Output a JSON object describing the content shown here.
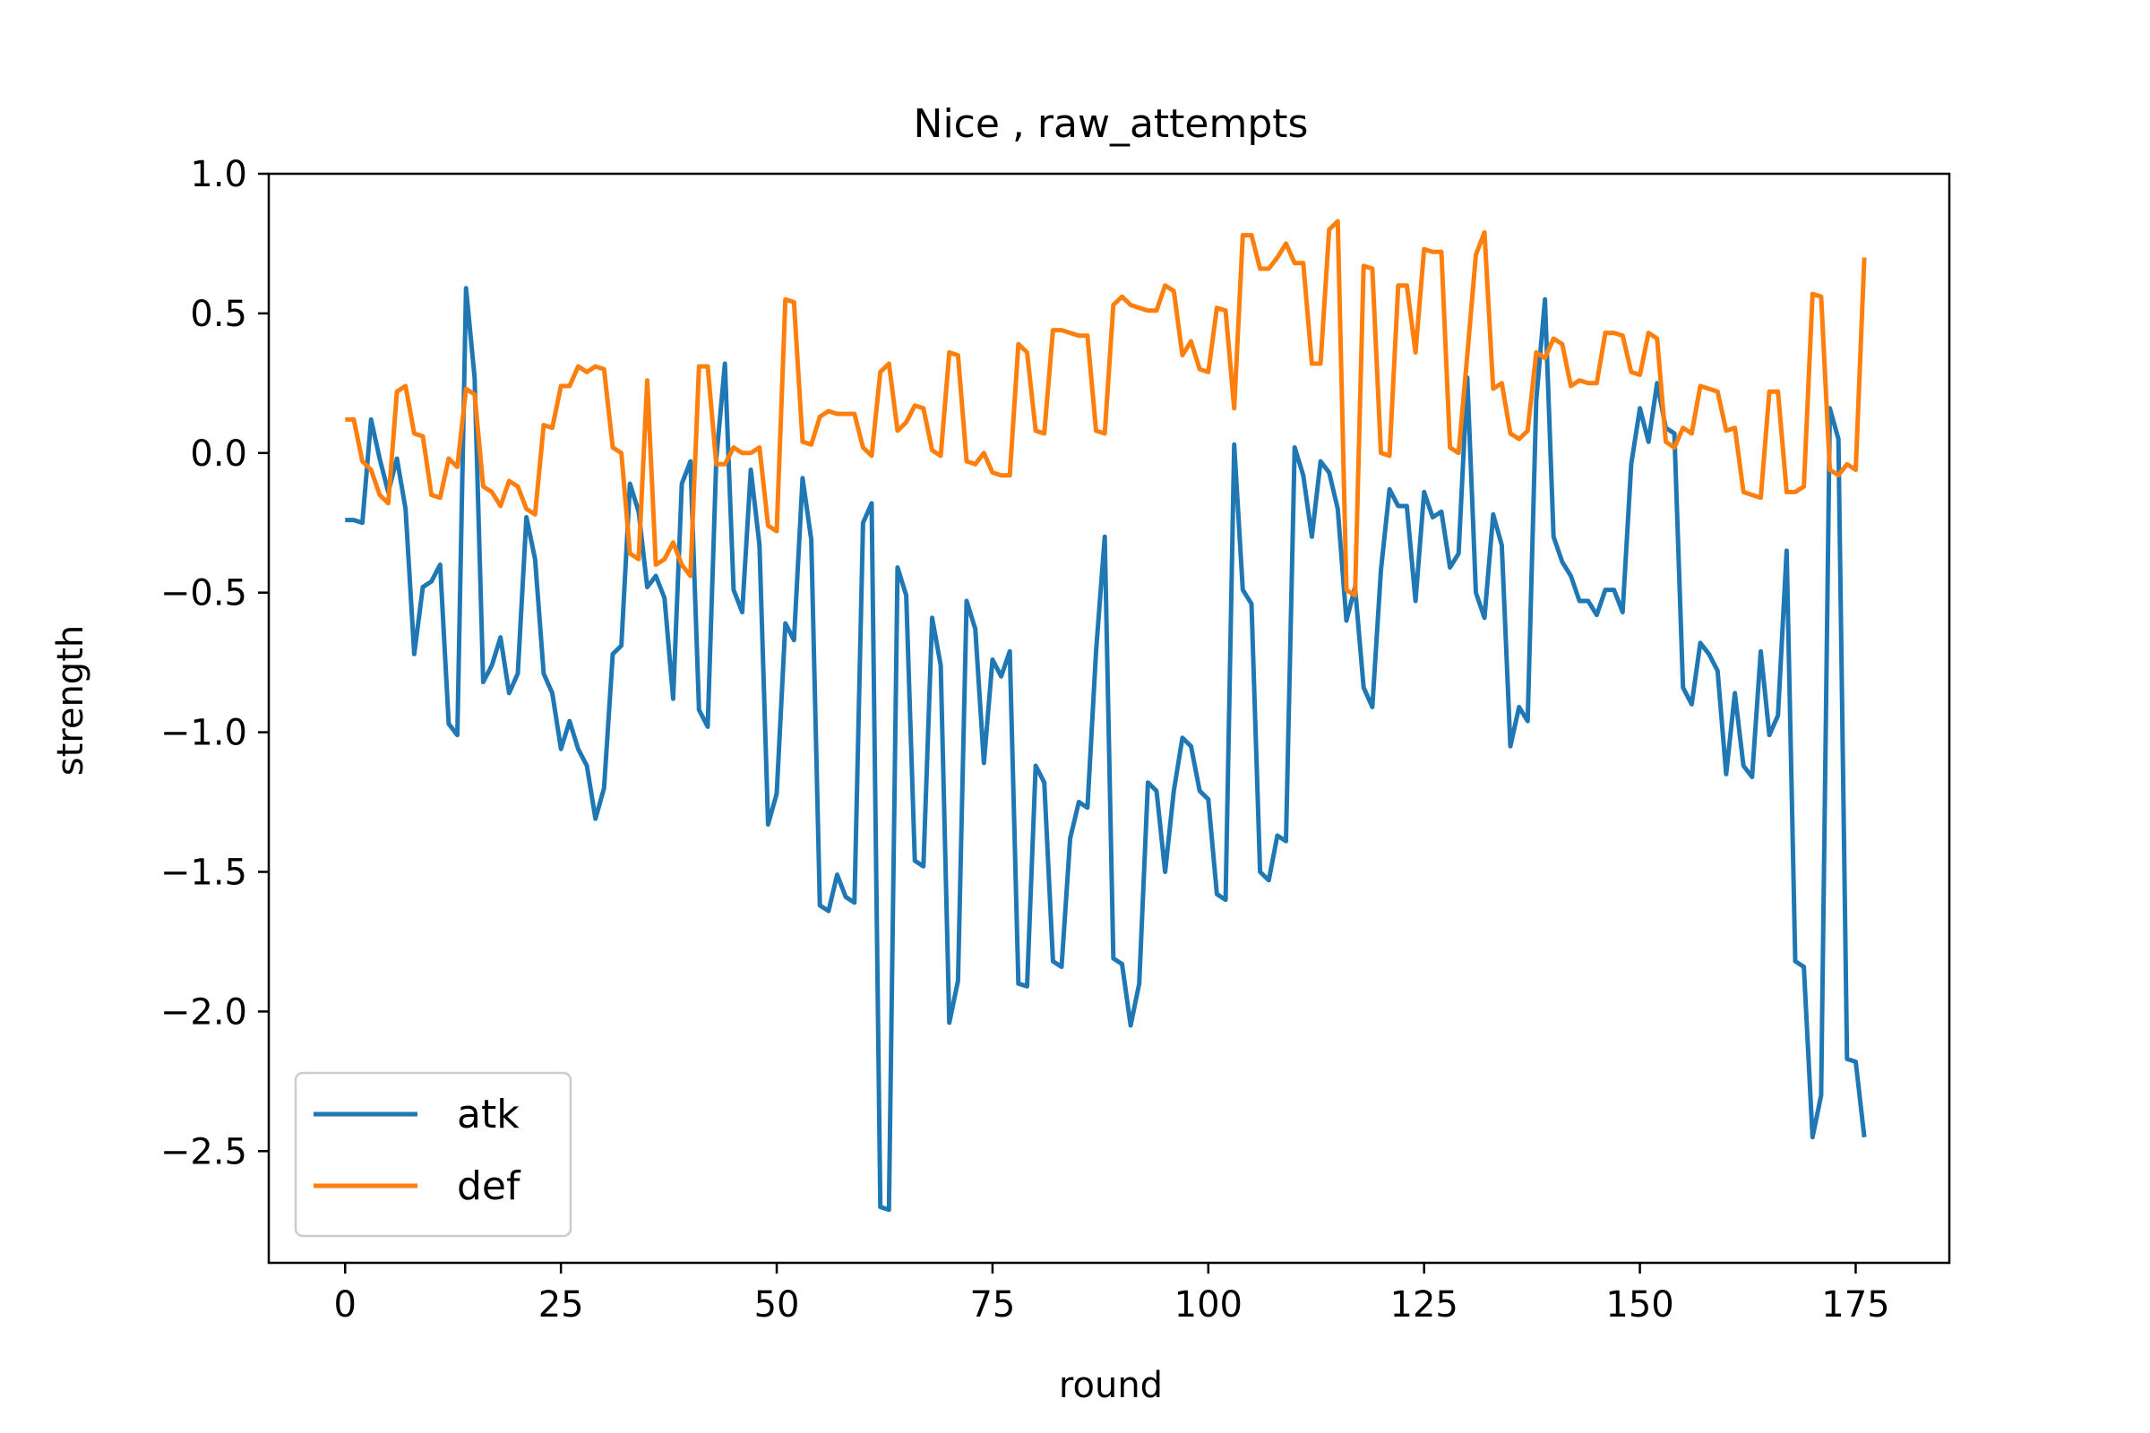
{
  "chart_data": {
    "type": "line",
    "title": "Nice , raw_attempts",
    "xlabel": "round",
    "ylabel": "strength",
    "xlim": [
      -8.85,
      185.85
    ],
    "ylim": [
      -2.9,
      1.0
    ],
    "xticks": [
      0,
      25,
      50,
      75,
      100,
      125,
      150,
      175
    ],
    "yticks": [
      1.0,
      0.5,
      0.0,
      -0.5,
      -1.0,
      -1.5,
      -2.0,
      -2.5
    ],
    "ytick_labels": [
      "1.0",
      "0.5",
      "0.0",
      "−0.5",
      "−1.0",
      "−1.5",
      "−2.0",
      "−2.5"
    ],
    "grid": false,
    "legend_position": "lower-left",
    "series": [
      {
        "name": "atk",
        "color": "#1f77b4",
        "x": [
          0,
          1,
          2,
          3,
          4,
          5,
          6,
          7,
          8,
          9,
          10,
          11,
          12,
          13,
          14,
          15,
          16,
          17,
          18,
          19,
          20,
          21,
          22,
          23,
          24,
          25,
          26,
          27,
          28,
          29,
          30,
          31,
          32,
          33,
          34,
          35,
          36,
          37,
          38,
          39,
          40,
          41,
          42,
          43,
          44,
          45,
          46,
          47,
          48,
          49,
          50,
          51,
          52,
          53,
          54,
          55,
          56,
          57,
          58,
          59,
          60,
          61,
          62,
          63,
          64,
          65,
          66,
          67,
          68,
          69,
          70,
          71,
          72,
          73,
          74,
          75,
          76,
          77,
          78,
          79,
          80,
          81,
          82,
          83,
          84,
          85,
          86,
          87,
          88,
          89,
          90,
          91,
          92,
          93,
          94,
          95,
          96,
          97,
          98,
          99,
          100,
          101,
          102,
          103,
          104,
          105,
          106,
          107,
          108,
          109,
          110,
          111,
          112,
          113,
          114,
          115,
          116,
          117,
          118,
          119,
          120,
          121,
          122,
          123,
          124,
          125,
          126,
          127,
          128,
          129,
          130,
          131,
          132,
          133,
          134,
          135,
          136,
          137,
          138,
          139,
          140,
          141,
          142,
          143,
          144,
          145,
          146,
          147,
          148,
          149,
          150,
          151,
          152,
          153,
          154,
          155,
          156,
          157,
          158,
          159,
          160,
          161,
          162,
          163,
          164,
          165,
          166,
          167,
          168,
          169,
          170,
          171,
          172,
          173,
          174,
          175,
          176
        ],
        "y": [
          -0.24,
          -0.24,
          -0.25,
          0.12,
          -0.02,
          -0.14,
          -0.02,
          -0.2,
          -0.72,
          -0.48,
          -0.46,
          -0.4,
          -0.97,
          -1.01,
          0.59,
          0.27,
          -0.82,
          -0.76,
          -0.66,
          -0.86,
          -0.79,
          -0.23,
          -0.38,
          -0.79,
          -0.86,
          -1.06,
          -0.96,
          -1.06,
          -1.12,
          -1.31,
          -1.2,
          -0.72,
          -0.69,
          -0.11,
          -0.21,
          -0.48,
          -0.44,
          -0.52,
          -0.88,
          -0.11,
          -0.03,
          -0.92,
          -0.98,
          -0.02,
          0.32,
          -0.49,
          -0.57,
          -0.06,
          -0.33,
          -1.33,
          -1.22,
          -0.61,
          -0.67,
          -0.09,
          -0.31,
          -1.62,
          -1.64,
          -1.51,
          -1.59,
          -1.61,
          -0.25,
          -0.18,
          -2.7,
          -2.71,
          -0.41,
          -0.51,
          -1.46,
          -1.48,
          -0.59,
          -0.76,
          -2.04,
          -1.89,
          -0.53,
          -0.63,
          -1.11,
          -0.74,
          -0.8,
          -0.71,
          -1.9,
          -1.91,
          -1.12,
          -1.18,
          -1.82,
          -1.84,
          -1.38,
          -1.25,
          -1.27,
          -0.71,
          -0.3,
          -1.81,
          -1.83,
          -2.05,
          -1.9,
          -1.18,
          -1.21,
          -1.5,
          -1.21,
          -1.02,
          -1.05,
          -1.21,
          -1.24,
          -1.58,
          -1.6,
          0.03,
          -0.49,
          -0.54,
          -1.5,
          -1.53,
          -1.37,
          -1.39,
          0.02,
          -0.08,
          -0.3,
          -0.03,
          -0.07,
          -0.2,
          -0.6,
          -0.48,
          -0.84,
          -0.91,
          -0.42,
          -0.13,
          -0.19,
          -0.19,
          -0.53,
          -0.14,
          -0.23,
          -0.21,
          -0.41,
          -0.36,
          0.27,
          -0.5,
          -0.59,
          -0.22,
          -0.33,
          -1.05,
          -0.91,
          -0.96,
          0.19,
          0.55,
          -0.3,
          -0.39,
          -0.44,
          -0.53,
          -0.53,
          -0.58,
          -0.49,
          -0.49,
          -0.57,
          -0.04,
          0.16,
          0.04,
          0.25,
          0.09,
          0.07,
          -0.84,
          -0.9,
          -0.68,
          -0.72,
          -0.78,
          -1.15,
          -0.86,
          -1.12,
          -1.16,
          -0.71,
          -1.01,
          -0.94,
          -0.35,
          -1.82,
          -1.84,
          -2.45,
          -2.3,
          0.16,
          0.05,
          -2.17,
          -2.18,
          -2.45
        ]
      },
      {
        "name": "def",
        "color": "#ff7f0e",
        "x": [
          0,
          1,
          2,
          3,
          4,
          5,
          6,
          7,
          8,
          9,
          10,
          11,
          12,
          13,
          14,
          15,
          16,
          17,
          18,
          19,
          20,
          21,
          22,
          23,
          24,
          25,
          26,
          27,
          28,
          29,
          30,
          31,
          32,
          33,
          34,
          35,
          36,
          37,
          38,
          39,
          40,
          41,
          42,
          43,
          44,
          45,
          46,
          47,
          48,
          49,
          50,
          51,
          52,
          53,
          54,
          55,
          56,
          57,
          58,
          59,
          60,
          61,
          62,
          63,
          64,
          65,
          66,
          67,
          68,
          69,
          70,
          71,
          72,
          73,
          74,
          75,
          76,
          77,
          78,
          79,
          80,
          81,
          82,
          83,
          84,
          85,
          86,
          87,
          88,
          89,
          90,
          91,
          92,
          93,
          94,
          95,
          96,
          97,
          98,
          99,
          100,
          101,
          102,
          103,
          104,
          105,
          106,
          107,
          108,
          109,
          110,
          111,
          112,
          113,
          114,
          115,
          116,
          117,
          118,
          119,
          120,
          121,
          122,
          123,
          124,
          125,
          126,
          127,
          128,
          129,
          130,
          131,
          132,
          133,
          134,
          135,
          136,
          137,
          138,
          139,
          140,
          141,
          142,
          143,
          144,
          145,
          146,
          147,
          148,
          149,
          150,
          151,
          152,
          153,
          154,
          155,
          156,
          157,
          158,
          159,
          160,
          161,
          162,
          163,
          164,
          165,
          166,
          167,
          168,
          169,
          170,
          171,
          172,
          173,
          174,
          175,
          176
        ],
        "y": [
          0.12,
          0.12,
          -0.03,
          -0.06,
          -0.15,
          -0.18,
          0.22,
          0.24,
          0.07,
          0.06,
          -0.15,
          -0.16,
          -0.02,
          -0.05,
          0.23,
          0.21,
          -0.12,
          -0.14,
          -0.19,
          -0.1,
          -0.12,
          -0.2,
          -0.22,
          0.1,
          0.09,
          0.24,
          0.24,
          0.31,
          0.29,
          0.31,
          0.3,
          0.02,
          0.0,
          -0.36,
          -0.38,
          0.26,
          -0.4,
          -0.38,
          -0.32,
          -0.4,
          -0.44,
          0.31,
          0.31,
          -0.04,
          -0.04,
          0.02,
          0.0,
          0.0,
          0.02,
          -0.26,
          -0.28,
          0.55,
          0.54,
          0.04,
          0.03,
          0.13,
          0.15,
          0.14,
          0.14,
          0.14,
          0.02,
          -0.01,
          0.29,
          0.32,
          0.08,
          0.11,
          0.17,
          0.16,
          0.01,
          -0.01,
          0.36,
          0.35,
          -0.03,
          -0.04,
          0.0,
          -0.07,
          -0.08,
          -0.08,
          0.39,
          0.36,
          0.08,
          0.07,
          0.44,
          0.44,
          0.43,
          0.42,
          0.42,
          0.08,
          0.07,
          0.53,
          0.56,
          0.53,
          0.52,
          0.51,
          0.51,
          0.6,
          0.58,
          0.35,
          0.4,
          0.3,
          0.29,
          0.52,
          0.51,
          0.16,
          0.78,
          0.78,
          0.66,
          0.66,
          0.7,
          0.75,
          0.68,
          0.68,
          0.32,
          0.32,
          0.8,
          0.83,
          -0.49,
          -0.51,
          0.67,
          0.66,
          0.0,
          -0.01,
          0.6,
          0.6,
          0.36,
          0.73,
          0.72,
          0.72,
          0.02,
          0.0,
          0.35,
          0.71,
          0.79,
          0.23,
          0.25,
          0.07,
          0.05,
          0.08,
          0.36,
          0.34,
          0.41,
          0.39,
          0.24,
          0.26,
          0.25,
          0.25,
          0.43,
          0.43,
          0.42,
          0.29,
          0.28,
          0.43,
          0.41,
          0.04,
          0.02,
          0.09,
          0.07,
          0.24,
          0.23,
          0.22,
          0.08,
          0.09,
          -0.14,
          -0.15,
          -0.16,
          0.22,
          0.22,
          -0.14,
          -0.14,
          -0.12,
          0.57,
          0.56,
          -0.06,
          -0.08,
          -0.04,
          -0.06,
          0.7
        ]
      }
    ]
  }
}
